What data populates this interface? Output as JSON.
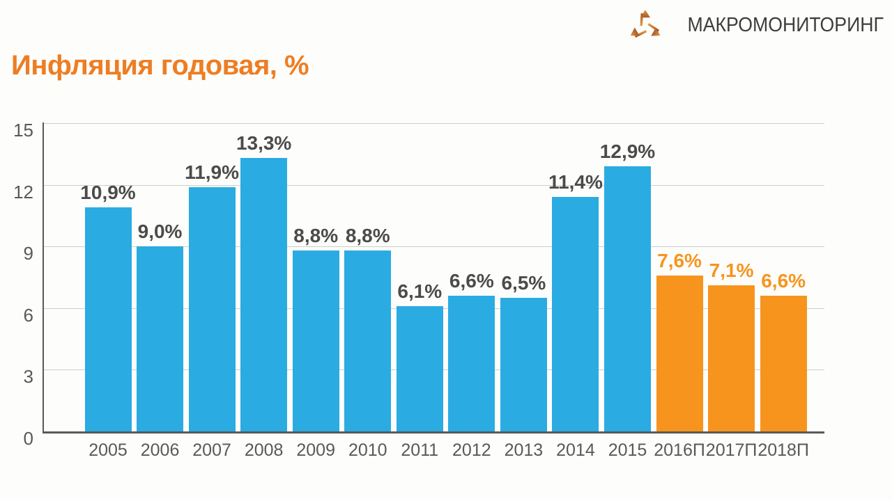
{
  "logo": {
    "text": "МАКРОМОНИТОРИНГ",
    "icon": "tri-arrow-icon"
  },
  "title": "Инфляция годовая, %",
  "colors": {
    "actual_bar": "#2aabe2",
    "forecast_bar": "#f7941e",
    "title_orange": "#ee7d23",
    "axis_gray": "#595959",
    "grid_gray": "#cdcdcd",
    "value_label_gray": "#4b4b4b",
    "logo_icon_orange": "#c8732f"
  },
  "chart_data": {
    "type": "bar",
    "title": "Инфляция годовая, %",
    "categories": [
      "2005",
      "2006",
      "2007",
      "2008",
      "2009",
      "2010",
      "2011",
      "2012",
      "2013",
      "2014",
      "2015",
      "2016П",
      "2017П",
      "2018П"
    ],
    "values": [
      10.9,
      9.0,
      11.9,
      13.3,
      8.8,
      8.8,
      6.1,
      6.6,
      6.5,
      11.4,
      12.9,
      7.6,
      7.1,
      6.6
    ],
    "data_labels": [
      "10,9%",
      "9,0%",
      "11,9%",
      "13,3%",
      "8,8%",
      "8,8%",
      "6,1%",
      "6,6%",
      "6,5%",
      "11,4%",
      "12,9%",
      "7,6%",
      "7,1%",
      "6,6%"
    ],
    "forecast_from_index": 11,
    "series_colors": {
      "actual": "#2aabe2",
      "forecast": "#f7941e"
    },
    "xlabel": "",
    "ylabel": "",
    "ylim": [
      0,
      15
    ],
    "yticks": [
      0,
      3,
      6,
      9,
      12,
      15
    ],
    "grid": true,
    "legend": false
  }
}
